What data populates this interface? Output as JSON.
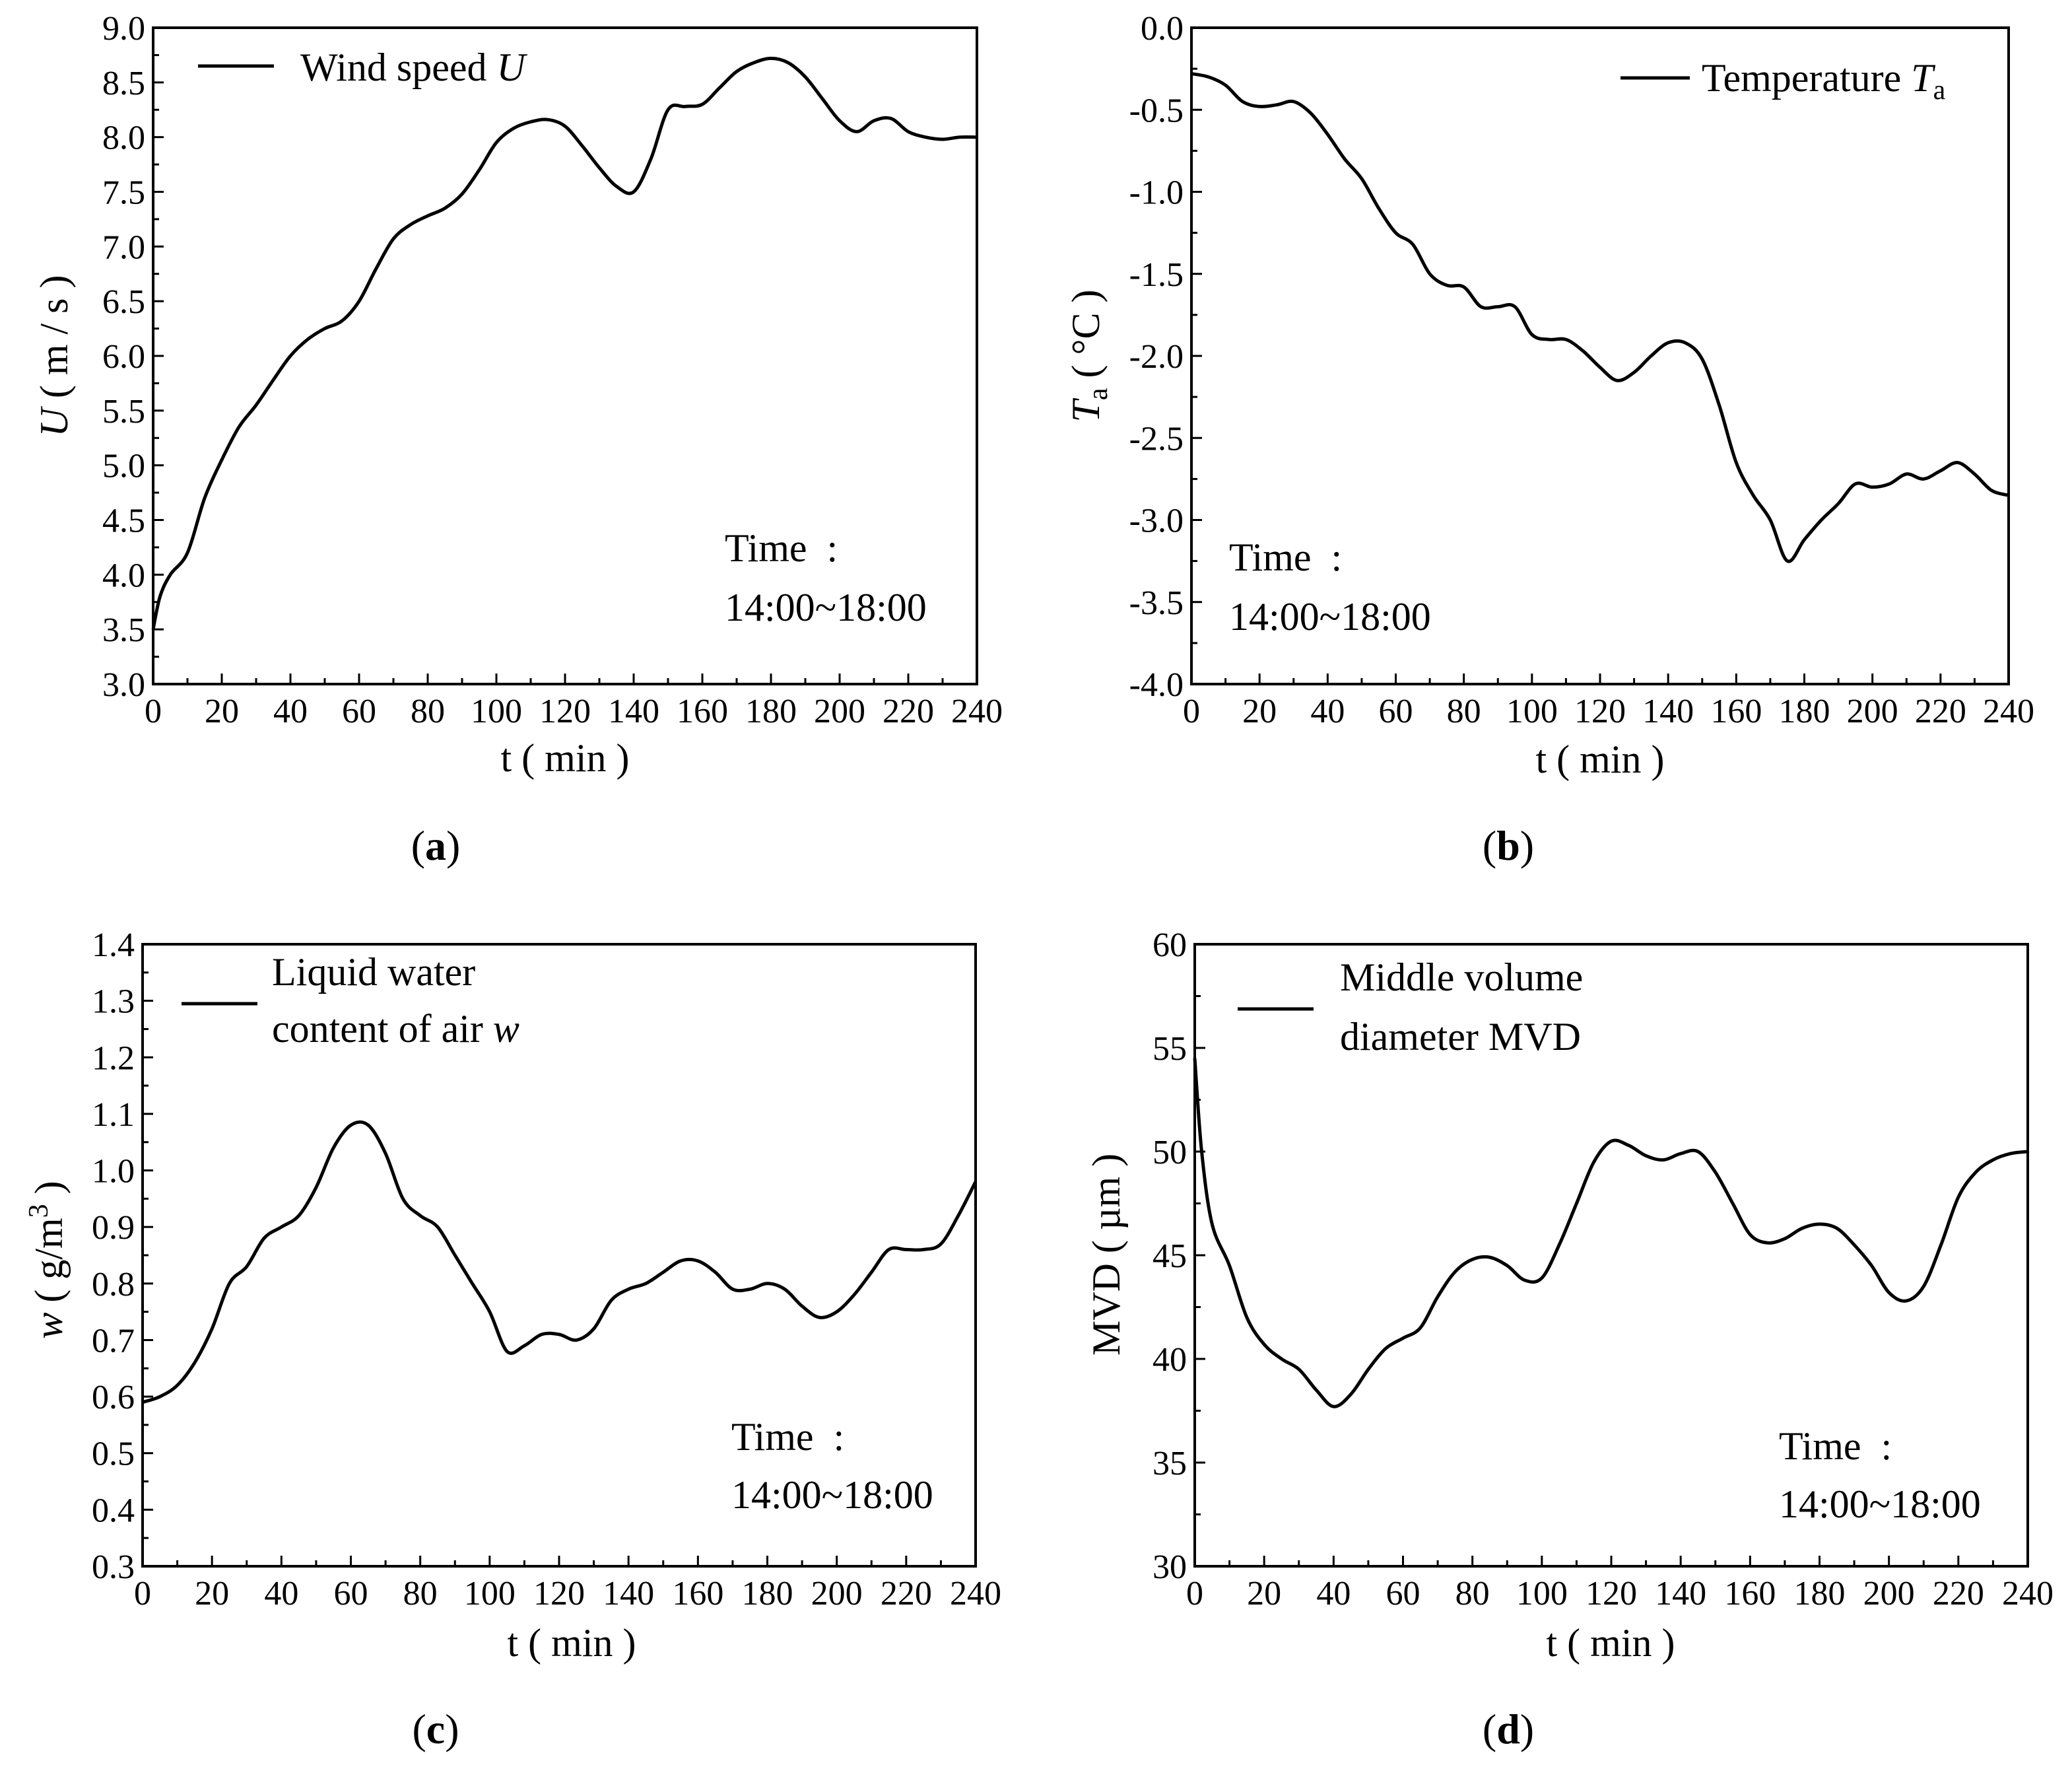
{
  "figure": {
    "time_note_line1": "Time  :",
    "time_note_line2": "14:00~18:00",
    "xlabel": "t ( min )"
  },
  "chart_data": [
    {
      "id": "a",
      "type": "line",
      "panel_label": "(a)",
      "panel_letter": "a",
      "legend_text": "Wind speed",
      "legend_var": "U",
      "ylabel_var": "U",
      "ylabel_rest": " ( m / s )",
      "xlabel": "t ( min )",
      "xlim": [
        0,
        240
      ],
      "ylim": [
        3.0,
        9.0
      ],
      "xticks": [
        "0",
        "20",
        "40",
        "60",
        "80",
        "100",
        "120",
        "140",
        "160",
        "180",
        "200",
        "220",
        "240"
      ],
      "yticks": [
        "3.0",
        "3.5",
        "4.0",
        "4.5",
        "5.0",
        "5.5",
        "6.0",
        "6.5",
        "7.0",
        "7.5",
        "8.0",
        "8.5",
        "9.0"
      ],
      "note": [
        "Time  :",
        "14:00~18:00"
      ],
      "x": [
        0,
        2,
        5,
        10,
        15,
        20,
        25,
        30,
        35,
        40,
        45,
        50,
        55,
        60,
        65,
        70,
        75,
        80,
        85,
        90,
        95,
        100,
        105,
        110,
        115,
        120,
        125,
        130,
        135,
        140,
        145,
        150,
        155,
        160,
        165,
        170,
        175,
        180,
        185,
        190,
        195,
        200,
        205,
        210,
        215,
        220,
        225,
        230,
        235,
        240
      ],
      "y": [
        3.5,
        3.8,
        4.0,
        4.2,
        4.7,
        5.05,
        5.35,
        5.55,
        5.78,
        6.0,
        6.15,
        6.25,
        6.32,
        6.5,
        6.8,
        7.07,
        7.2,
        7.28,
        7.35,
        7.48,
        7.7,
        7.95,
        8.08,
        8.14,
        8.16,
        8.1,
        7.92,
        7.72,
        7.55,
        7.5,
        7.8,
        8.25,
        8.28,
        8.3,
        8.45,
        8.6,
        8.68,
        8.72,
        8.68,
        8.55,
        8.35,
        8.15,
        8.05,
        8.15,
        8.17,
        8.05,
        8.0,
        7.98,
        8.0,
        8.0
      ]
    },
    {
      "id": "b",
      "type": "line",
      "panel_label": "(b)",
      "panel_letter": "b",
      "legend_text": "Temperature",
      "legend_var": "T",
      "legend_sub": "a",
      "ylabel_var": "T",
      "ylabel_sub": "a",
      "ylabel_rest": " ( °C )",
      "xlabel": "t ( min )",
      "xlim": [
        0,
        240
      ],
      "ylim": [
        -4.0,
        0.0
      ],
      "xticks": [
        "0",
        "20",
        "40",
        "60",
        "80",
        "100",
        "120",
        "140",
        "160",
        "180",
        "200",
        "220",
        "240"
      ],
      "yticks": [
        "-4.0",
        "-3.5",
        "-3.0",
        "-2.5",
        "-2.0",
        "-1.5",
        "-1.0",
        "-0.5",
        "0.0"
      ],
      "note": [
        "Time  :",
        "14:00~18:00"
      ],
      "x": [
        0,
        5,
        10,
        15,
        20,
        25,
        30,
        35,
        40,
        45,
        50,
        55,
        60,
        65,
        70,
        75,
        80,
        85,
        90,
        95,
        100,
        105,
        110,
        115,
        120,
        125,
        130,
        135,
        140,
        145,
        150,
        155,
        160,
        165,
        170,
        175,
        180,
        185,
        190,
        195,
        200,
        205,
        210,
        215,
        220,
        225,
        230,
        235,
        240
      ],
      "y": [
        -0.28,
        -0.3,
        -0.35,
        -0.45,
        -0.48,
        -0.47,
        -0.45,
        -0.52,
        -0.65,
        -0.8,
        -0.92,
        -1.1,
        -1.25,
        -1.32,
        -1.5,
        -1.57,
        -1.58,
        -1.7,
        -1.7,
        -1.7,
        -1.87,
        -1.9,
        -1.9,
        -1.97,
        -2.07,
        -2.15,
        -2.1,
        -2.0,
        -1.92,
        -1.92,
        -2.02,
        -2.3,
        -2.65,
        -2.85,
        -3.0,
        -3.25,
        -3.12,
        -3.0,
        -2.9,
        -2.78,
        -2.8,
        -2.78,
        -2.72,
        -2.75,
        -2.7,
        -2.65,
        -2.72,
        -2.82,
        -2.85
      ]
    },
    {
      "id": "c",
      "type": "line",
      "panel_label": "(c)",
      "panel_letter": "c",
      "legend_line1": "Liquid water",
      "legend_line2_text": "content of air",
      "legend_var": "w",
      "ylabel_var": "w",
      "ylabel_rest": " ( g/m",
      "ylabel_sup": "3",
      "ylabel_close": " )",
      "xlabel": "t ( min )",
      "xlim": [
        0,
        240
      ],
      "ylim": [
        0.3,
        1.4
      ],
      "xticks": [
        "0",
        "20",
        "40",
        "60",
        "80",
        "100",
        "120",
        "140",
        "160",
        "180",
        "200",
        "220",
        "240"
      ],
      "yticks": [
        "0.3",
        "0.4",
        "0.5",
        "0.6",
        "0.7",
        "0.8",
        "0.9",
        "1.0",
        "1.1",
        "1.2",
        "1.3",
        "1.4"
      ],
      "note": [
        "Time  :",
        "14:00~18:00"
      ],
      "x": [
        0,
        5,
        10,
        15,
        20,
        25,
        30,
        35,
        40,
        45,
        50,
        55,
        60,
        65,
        70,
        75,
        80,
        85,
        90,
        95,
        100,
        105,
        110,
        115,
        120,
        125,
        130,
        135,
        140,
        145,
        150,
        155,
        160,
        165,
        170,
        175,
        180,
        185,
        190,
        195,
        200,
        205,
        210,
        215,
        220,
        225,
        230,
        235,
        240
      ],
      "y": [
        0.59,
        0.6,
        0.62,
        0.66,
        0.72,
        0.8,
        0.83,
        0.88,
        0.9,
        0.92,
        0.97,
        1.04,
        1.08,
        1.08,
        1.03,
        0.95,
        0.92,
        0.9,
        0.85,
        0.8,
        0.75,
        0.68,
        0.69,
        0.71,
        0.71,
        0.7,
        0.72,
        0.77,
        0.79,
        0.8,
        0.82,
        0.84,
        0.84,
        0.82,
        0.79,
        0.79,
        0.8,
        0.79,
        0.76,
        0.74,
        0.75,
        0.78,
        0.82,
        0.86,
        0.86,
        0.86,
        0.87,
        0.92,
        0.98
      ]
    },
    {
      "id": "d",
      "type": "line",
      "panel_label": "(d)",
      "panel_letter": "d",
      "legend_line1": "Middle volume",
      "legend_line2": "diameter MVD",
      "ylabel_text": "MVD",
      "ylabel_rest": " ( µm )",
      "xlabel": "t ( min )",
      "xlim": [
        0,
        240
      ],
      "ylim": [
        30,
        60
      ],
      "xticks": [
        "0",
        "20",
        "40",
        "60",
        "80",
        "100",
        "120",
        "140",
        "160",
        "180",
        "200",
        "220",
        "240"
      ],
      "yticks": [
        "30",
        "35",
        "40",
        "45",
        "50",
        "55",
        "60"
      ],
      "note": [
        "Time  :",
        "14:00~18:00"
      ],
      "x": [
        0,
        2,
        5,
        10,
        15,
        20,
        25,
        30,
        35,
        40,
        45,
        50,
        55,
        60,
        65,
        70,
        75,
        80,
        85,
        90,
        95,
        100,
        105,
        110,
        115,
        120,
        125,
        130,
        135,
        140,
        145,
        150,
        155,
        160,
        165,
        170,
        175,
        180,
        185,
        190,
        195,
        200,
        205,
        210,
        215,
        220,
        225,
        230,
        235,
        240
      ],
      "y": [
        54.5,
        50,
        46.5,
        44.5,
        42,
        40.7,
        40,
        39.5,
        38.5,
        37.7,
        38.3,
        39.5,
        40.5,
        41,
        41.5,
        43,
        44.2,
        44.8,
        44.9,
        44.5,
        43.8,
        43.9,
        45.5,
        47.5,
        49.5,
        50.5,
        50.3,
        49.8,
        49.6,
        49.9,
        50,
        49,
        47.5,
        46,
        45.6,
        45.8,
        46.3,
        46.5,
        46.3,
        45.5,
        44.5,
        43.2,
        42.8,
        43.5,
        45.5,
        47.8,
        49,
        49.6,
        49.9,
        50
      ]
    }
  ]
}
